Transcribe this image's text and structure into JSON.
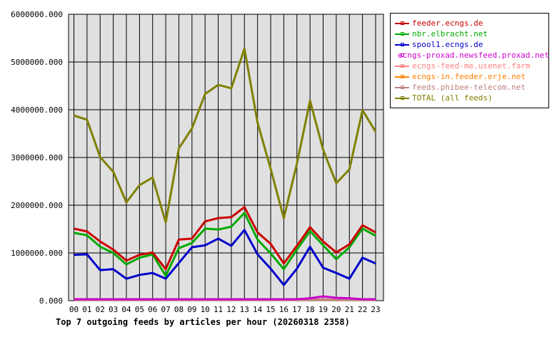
{
  "chart_data": {
    "type": "line",
    "title": "Top 7 outgoing feeds by articles per hour (20260318 2358)",
    "xlabel": "",
    "ylabel": "",
    "categories": [
      "00",
      "01",
      "02",
      "03",
      "04",
      "05",
      "06",
      "07",
      "08",
      "09",
      "10",
      "11",
      "12",
      "13",
      "14",
      "15",
      "16",
      "17",
      "18",
      "19",
      "20",
      "21",
      "22",
      "23"
    ],
    "ylim": [
      0,
      6000000
    ],
    "yticks": [
      "0.000",
      "1000000.000",
      "2000000.000",
      "3000000.000",
      "4000000.000",
      "5000000.000",
      "6000000.000"
    ],
    "ytick_values": [
      0,
      1000000,
      2000000,
      3000000,
      4000000,
      5000000,
      6000000
    ],
    "grid": true,
    "legend_position": "right",
    "background": "#e0e0e0",
    "series": [
      {
        "name": "feeder.ecngs.de",
        "color": "#cc0000",
        "values": [
          1510000,
          1450000,
          1240000,
          1070000,
          840000,
          960000,
          1010000,
          660000,
          1280000,
          1300000,
          1660000,
          1730000,
          1750000,
          1960000,
          1430000,
          1190000,
          780000,
          1150000,
          1540000,
          1240000,
          1010000,
          1180000,
          1580000,
          1430000
        ]
      },
      {
        "name": "nbr.elbracht.net",
        "color": "#00aa00",
        "values": [
          1420000,
          1370000,
          1130000,
          1000000,
          760000,
          900000,
          970000,
          520000,
          1100000,
          1210000,
          1510000,
          1490000,
          1550000,
          1840000,
          1280000,
          990000,
          660000,
          1070000,
          1460000,
          1160000,
          870000,
          1120000,
          1510000,
          1360000
        ]
      },
      {
        "name": "spool1.ecngs.de",
        "color": "#0000cc",
        "values": [
          960000,
          970000,
          640000,
          660000,
          460000,
          540000,
          580000,
          460000,
          790000,
          1120000,
          1160000,
          1300000,
          1150000,
          1480000,
          970000,
          670000,
          330000,
          670000,
          1130000,
          690000,
          580000,
          460000,
          900000,
          780000
        ]
      },
      {
        "name": "ecngs-proxad.newsfeed.proxad.net",
        "color": "#cc00cc",
        "values": [
          30000,
          30000,
          30000,
          30000,
          30000,
          30000,
          30000,
          30000,
          30000,
          30000,
          30000,
          30000,
          30000,
          30000,
          30000,
          30000,
          30000,
          30000,
          50000,
          90000,
          60000,
          50000,
          30000,
          30000
        ]
      },
      {
        "name": "ecngs-feed-me.usenet.farm",
        "color": "#ff8080",
        "values": [
          20000,
          20000,
          20000,
          20000,
          20000,
          20000,
          20000,
          20000,
          20000,
          20000,
          20000,
          20000,
          20000,
          20000,
          20000,
          20000,
          20000,
          20000,
          20000,
          20000,
          20000,
          20000,
          20000,
          20000
        ]
      },
      {
        "name": "ecngs-in.feeder.erje.net",
        "color": "#ff8000",
        "values": [
          20000,
          20000,
          20000,
          20000,
          20000,
          20000,
          20000,
          20000,
          20000,
          20000,
          20000,
          20000,
          20000,
          20000,
          20000,
          20000,
          20000,
          20000,
          20000,
          20000,
          20000,
          20000,
          20000,
          20000
        ]
      },
      {
        "name": "feeds.phibee-telecom.net",
        "color": "#c08080",
        "values": [
          20000,
          20000,
          20000,
          20000,
          20000,
          20000,
          20000,
          20000,
          20000,
          20000,
          20000,
          20000,
          20000,
          20000,
          20000,
          20000,
          20000,
          20000,
          20000,
          20000,
          20000,
          20000,
          20000,
          20000
        ]
      },
      {
        "name": "TOTAL (all feeds)",
        "color": "#808000",
        "values": [
          3880000,
          3790000,
          3010000,
          2700000,
          2060000,
          2420000,
          2580000,
          1640000,
          3190000,
          3610000,
          4330000,
          4520000,
          4450000,
          5280000,
          3730000,
          2760000,
          1730000,
          2870000,
          4190000,
          3160000,
          2460000,
          2750000,
          3990000,
          3540000
        ]
      }
    ]
  }
}
